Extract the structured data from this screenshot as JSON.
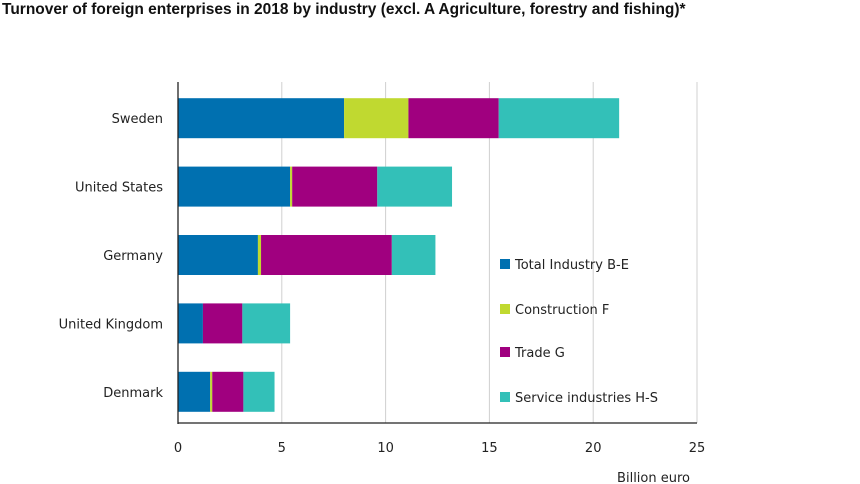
{
  "chart_data": {
    "type": "bar",
    "orientation": "horizontal",
    "stacked": true,
    "title": "Turnover of foreign enterprises in 2018 by industry (excl. A Agriculture, forestry and fishing)*",
    "xlabel": "Billion euro",
    "ylabel": "",
    "xlim": [
      0,
      25
    ],
    "xticks": [
      0,
      5,
      10,
      15,
      20,
      25
    ],
    "grid": true,
    "legend_position": "right",
    "categories": [
      "Sweden",
      "United States",
      "Germany",
      "United Kingdom",
      "Denmark"
    ],
    "series": [
      {
        "name": "Total Industry B-E",
        "color": "#0070b0",
        "values": [
          8.0,
          5.4,
          3.85,
          1.2,
          1.55
        ]
      },
      {
        "name": "Construction F",
        "color": "#c0d930",
        "values": [
          3.1,
          0.1,
          0.15,
          0.0,
          0.1
        ]
      },
      {
        "name": "Trade G",
        "color": "#a0007f",
        "values": [
          4.35,
          4.1,
          6.3,
          1.9,
          1.5
        ]
      },
      {
        "name": "Service industries H-S",
        "color": "#33c0b8",
        "values": [
          5.8,
          3.6,
          2.1,
          2.3,
          1.5
        ]
      }
    ]
  }
}
